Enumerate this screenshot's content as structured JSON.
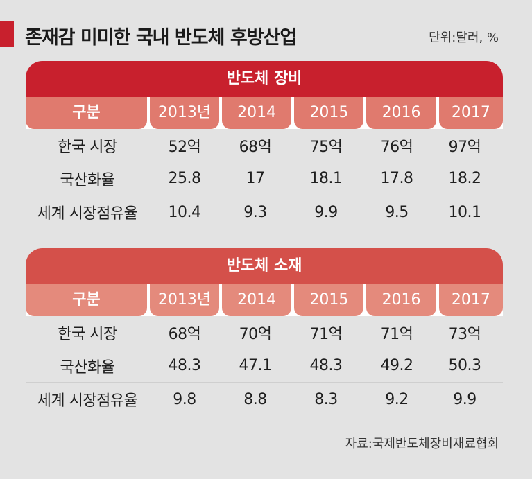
{
  "header": {
    "title": "존재감 미미한 국내 반도체 후방산업",
    "unit": "단위:달러, %"
  },
  "columns": [
    "구분",
    "2013년",
    "2014",
    "2015",
    "2016",
    "2017"
  ],
  "sections": [
    {
      "title": "반도체 장비",
      "rows": [
        {
          "label": "한국 시장",
          "values": [
            "52억",
            "68억",
            "75억",
            "76억",
            "97억"
          ]
        },
        {
          "label": "국산화율",
          "values": [
            "25.8",
            "17",
            "18.1",
            "17.8",
            "18.2"
          ]
        },
        {
          "label": "세계 시장점유율",
          "values": [
            "10.4",
            "9.3",
            "9.9",
            "9.5",
            "10.1"
          ]
        }
      ]
    },
    {
      "title": "반도체 소재",
      "rows": [
        {
          "label": "한국 시장",
          "values": [
            "68억",
            "70억",
            "71억",
            "71억",
            "73억"
          ]
        },
        {
          "label": "국산화율",
          "values": [
            "48.3",
            "47.1",
            "48.3",
            "49.2",
            "50.3"
          ]
        },
        {
          "label": "세계 시장점유율",
          "values": [
            "9.8",
            "8.8",
            "8.3",
            "9.2",
            "9.9"
          ]
        }
      ]
    }
  ],
  "footer": {
    "source": "자료:국제반도체장비재료협회"
  },
  "colors": {
    "accent": "#c8202d",
    "section2": "#d4504a",
    "header_cell": "#e07a6e",
    "background": "#e3e3e3"
  }
}
